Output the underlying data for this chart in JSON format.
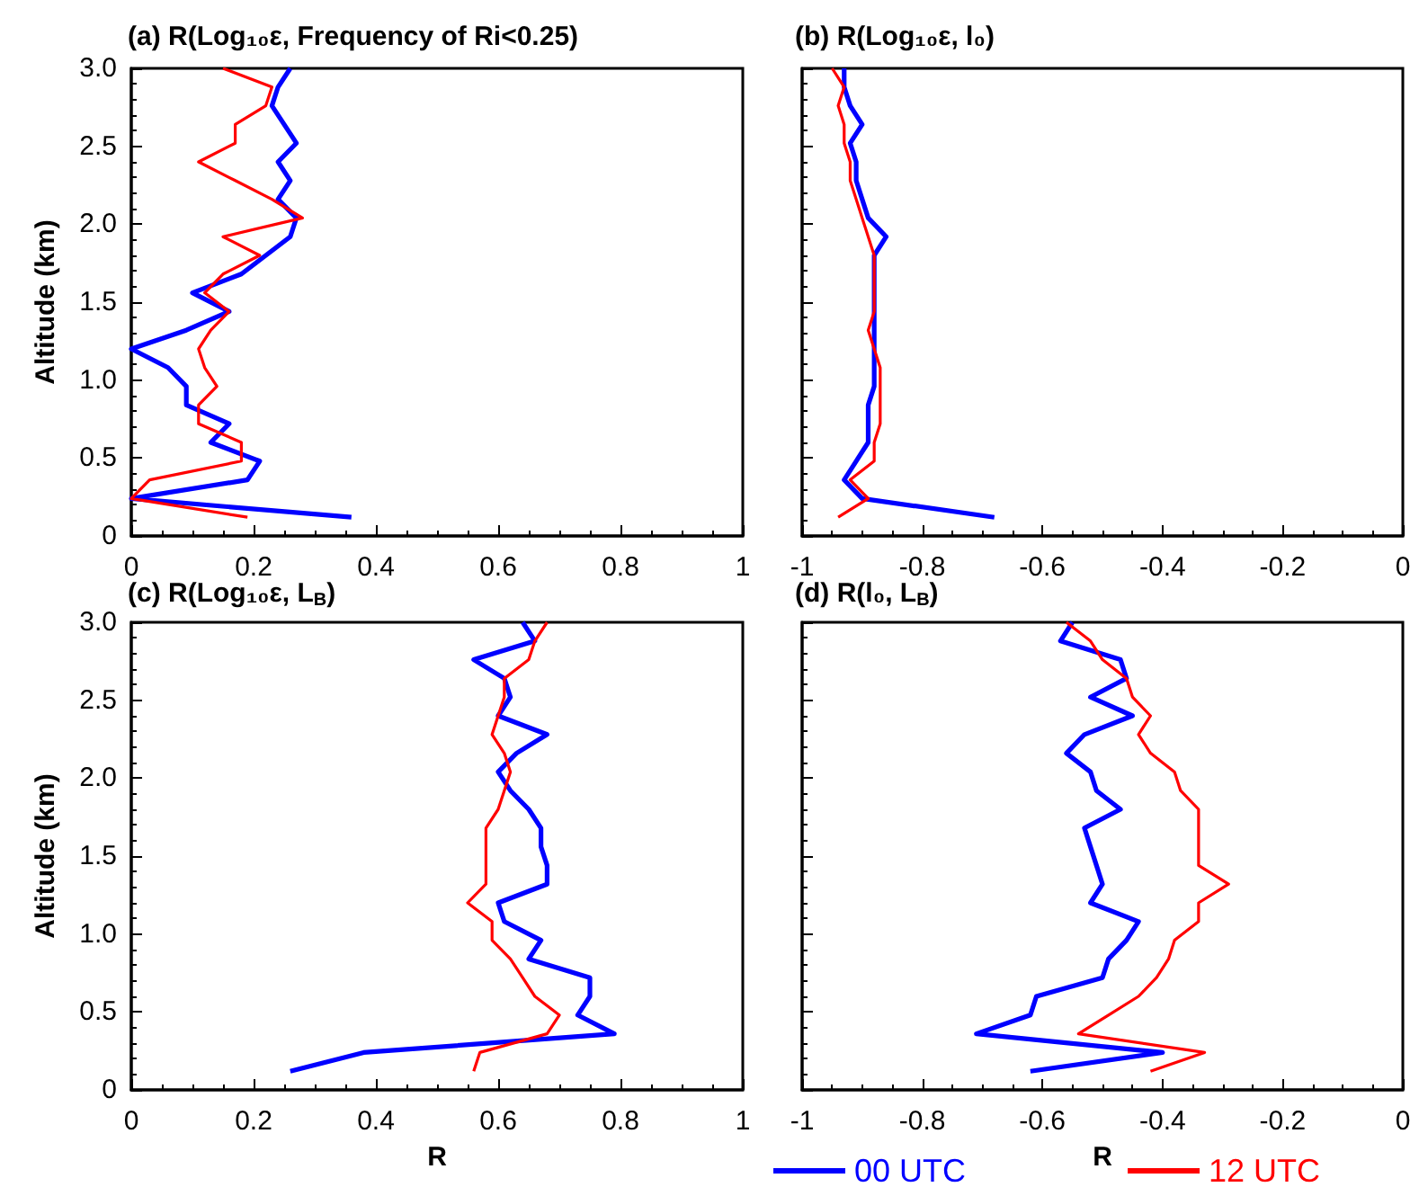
{
  "chart_data": [
    {
      "type": "line",
      "title": "(a) R(Log₁₀ε, Frequency of Ri<0.25)",
      "ylabel": "Altitude (km)",
      "xlim": [
        0,
        1
      ],
      "xticks": [
        0,
        0.2,
        0.4,
        0.6,
        0.8,
        1
      ],
      "ylim": [
        0,
        3
      ],
      "yticks": [
        0,
        0.5,
        {
          "value": 1,
          "label": "1.0"
        },
        1.5,
        {
          "value": 2,
          "label": "2.0"
        },
        2.5,
        {
          "value": 3,
          "label": "3.0"
        }
      ],
      "grid": false,
      "marker": "none",
      "series": [
        {
          "color": "#0000ff",
          "x": [
            0.36,
            0.0,
            0.19,
            0.21,
            0.13,
            0.16,
            0.09,
            0.09,
            0.06,
            0.0,
            0.09,
            0.16,
            0.1,
            0.18,
            0.22,
            0.26,
            0.27,
            0.24,
            0.26,
            0.24,
            0.27,
            0.25,
            0.23,
            0.24,
            0.26
          ],
          "values": [
            0.12,
            0.24,
            0.36,
            0.48,
            0.6,
            0.72,
            0.84,
            0.96,
            1.08,
            1.2,
            1.32,
            1.44,
            1.56,
            1.68,
            1.8,
            1.92,
            2.04,
            2.16,
            2.28,
            2.4,
            2.52,
            2.64,
            2.76,
            2.88,
            3.0
          ]
        },
        {
          "color": "#ff0000",
          "x": [
            0.19,
            0.0,
            0.03,
            0.18,
            0.18,
            0.11,
            0.11,
            0.14,
            0.12,
            0.11,
            0.13,
            0.16,
            0.12,
            0.15,
            0.21,
            0.15,
            0.28,
            0.23,
            0.17,
            0.11,
            0.17,
            0.17,
            0.22,
            0.23,
            0.15
          ],
          "values": [
            0.12,
            0.24,
            0.36,
            0.48,
            0.6,
            0.72,
            0.84,
            0.96,
            1.08,
            1.2,
            1.32,
            1.44,
            1.56,
            1.68,
            1.8,
            1.92,
            2.04,
            2.16,
            2.28,
            2.4,
            2.52,
            2.64,
            2.76,
            2.88,
            3.0
          ]
        }
      ]
    },
    {
      "type": "line",
      "title": "(b) R(Log₁₀ε, l₀)",
      "xlim": [
        -1,
        0
      ],
      "xticks": [
        -1,
        -0.8,
        -0.6,
        -0.4,
        -0.2,
        0
      ],
      "ylim": [
        0,
        3
      ],
      "yticks": [
        0,
        0.5,
        1,
        1.5,
        2,
        2.5,
        3
      ],
      "tick_labels": "x",
      "grid": false,
      "marker": "none",
      "series": [
        {
          "color": "#0000ff",
          "x": [
            -0.68,
            -0.9,
            -0.93,
            -0.91,
            -0.89,
            -0.89,
            -0.89,
            -0.88,
            -0.88,
            -0.88,
            -0.88,
            -0.88,
            -0.88,
            -0.88,
            -0.88,
            -0.86,
            -0.89,
            -0.9,
            -0.91,
            -0.91,
            -0.92,
            -0.9,
            -0.92,
            -0.93,
            -0.93
          ],
          "values": [
            0.12,
            0.24,
            0.36,
            0.48,
            0.6,
            0.72,
            0.84,
            0.96,
            1.08,
            1.2,
            1.32,
            1.44,
            1.56,
            1.68,
            1.8,
            1.92,
            2.04,
            2.16,
            2.28,
            2.4,
            2.52,
            2.64,
            2.76,
            2.88,
            3.0
          ]
        },
        {
          "color": "#ff0000",
          "x": [
            -0.94,
            -0.89,
            -0.92,
            -0.88,
            -0.88,
            -0.87,
            -0.87,
            -0.87,
            -0.87,
            -0.88,
            -0.89,
            -0.88,
            -0.88,
            -0.88,
            -0.88,
            -0.89,
            -0.9,
            -0.91,
            -0.92,
            -0.92,
            -0.93,
            -0.93,
            -0.94,
            -0.93,
            -0.95
          ],
          "values": [
            0.12,
            0.24,
            0.36,
            0.48,
            0.6,
            0.72,
            0.84,
            0.96,
            1.08,
            1.2,
            1.32,
            1.44,
            1.56,
            1.68,
            1.8,
            1.92,
            2.04,
            2.16,
            2.28,
            2.4,
            2.52,
            2.64,
            2.76,
            2.88,
            3.0
          ]
        }
      ]
    },
    {
      "type": "line",
      "title": "(c) R(Log₁₀ε, L$_{B}$)",
      "xlabel": "R",
      "ylabel": "Altitude (km)",
      "xlim": [
        0,
        1
      ],
      "xticks": [
        0,
        0.2,
        0.4,
        0.6,
        0.8,
        1
      ],
      "ylim": [
        0,
        3
      ],
      "yticks": [
        0,
        0.5,
        {
          "value": 1,
          "label": "1.0"
        },
        1.5,
        {
          "value": 2,
          "label": "2.0"
        },
        2.5,
        {
          "value": 3,
          "label": "3.0"
        }
      ],
      "grid": false,
      "marker": "none",
      "series": [
        {
          "color": "#0000ff",
          "x": [
            0.26,
            0.38,
            0.79,
            0.73,
            0.75,
            0.75,
            0.65,
            0.67,
            0.61,
            0.6,
            0.68,
            0.68,
            0.67,
            0.67,
            0.65,
            0.62,
            0.6,
            0.63,
            0.68,
            0.6,
            0.62,
            0.61,
            0.56,
            0.66,
            0.64
          ],
          "values": [
            0.12,
            0.24,
            0.36,
            0.48,
            0.6,
            0.72,
            0.84,
            0.96,
            1.08,
            1.2,
            1.32,
            1.44,
            1.56,
            1.68,
            1.8,
            1.92,
            2.04,
            2.16,
            2.28,
            2.4,
            2.52,
            2.64,
            2.76,
            2.88,
            3.0
          ]
        },
        {
          "color": "#ff0000",
          "x": [
            0.56,
            0.57,
            0.68,
            0.7,
            0.66,
            0.64,
            0.62,
            0.59,
            0.59,
            0.55,
            0.58,
            0.58,
            0.58,
            0.58,
            0.6,
            0.61,
            0.62,
            0.61,
            0.59,
            0.6,
            0.61,
            0.61,
            0.65,
            0.66,
            0.68
          ],
          "values": [
            0.12,
            0.24,
            0.36,
            0.48,
            0.6,
            0.72,
            0.84,
            0.96,
            1.08,
            1.2,
            1.32,
            1.44,
            1.56,
            1.68,
            1.8,
            1.92,
            2.04,
            2.16,
            2.28,
            2.4,
            2.52,
            2.64,
            2.76,
            2.88,
            3.0
          ]
        }
      ]
    },
    {
      "type": "line",
      "title": "(d) R(l₀, L$_{B}$)",
      "xlabel": "R",
      "xlim": [
        -1,
        0
      ],
      "xticks": [
        -1,
        -0.8,
        -0.6,
        -0.4,
        -0.2,
        0
      ],
      "ylim": [
        0,
        3
      ],
      "yticks": [
        0,
        0.5,
        1,
        1.5,
        2,
        2.5,
        3
      ],
      "tick_labels": "x",
      "grid": false,
      "marker": "none",
      "legend": "bottom",
      "series": [
        {
          "name": "00 UTC",
          "color": "#0000ff",
          "x": [
            -0.62,
            -0.4,
            -0.71,
            -0.62,
            -0.61,
            -0.5,
            -0.49,
            -0.46,
            -0.44,
            -0.52,
            -0.5,
            -0.51,
            -0.52,
            -0.53,
            -0.47,
            -0.51,
            -0.52,
            -0.56,
            -0.53,
            -0.45,
            -0.52,
            -0.46,
            -0.47,
            -0.57,
            -0.55
          ],
          "values": [
            0.12,
            0.24,
            0.36,
            0.48,
            0.6,
            0.72,
            0.84,
            0.96,
            1.08,
            1.2,
            1.32,
            1.44,
            1.56,
            1.68,
            1.8,
            1.92,
            2.04,
            2.16,
            2.28,
            2.4,
            2.52,
            2.64,
            2.76,
            2.88,
            3.0
          ]
        },
        {
          "name": "12 UTC",
          "color": "#ff0000",
          "x": [
            -0.42,
            -0.33,
            -0.54,
            -0.49,
            -0.44,
            -0.41,
            -0.39,
            -0.38,
            -0.34,
            -0.34,
            -0.29,
            -0.34,
            -0.34,
            -0.34,
            -0.34,
            -0.37,
            -0.38,
            -0.42,
            -0.44,
            -0.42,
            -0.45,
            -0.46,
            -0.5,
            -0.52,
            -0.56
          ],
          "values": [
            0.12,
            0.24,
            0.36,
            0.48,
            0.6,
            0.72,
            0.84,
            0.96,
            1.08,
            1.2,
            1.32,
            1.44,
            1.56,
            1.68,
            1.8,
            1.92,
            2.04,
            2.16,
            2.28,
            2.4,
            2.52,
            2.64,
            2.76,
            2.88,
            3.0
          ]
        }
      ]
    }
  ]
}
